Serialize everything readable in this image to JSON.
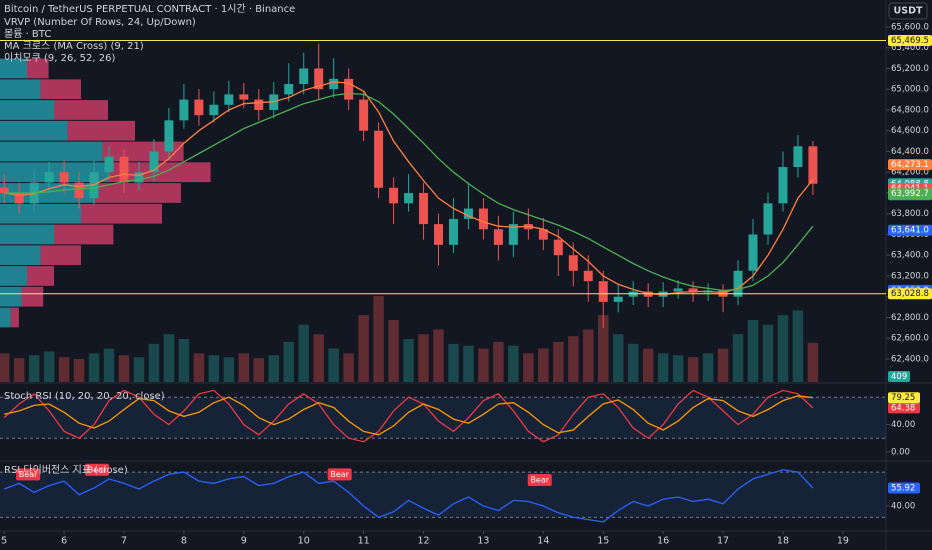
{
  "header": {
    "title": "Bitcoin / TetherUS PERPETUAL CONTRACT · 1시간 · Binance",
    "indicators": [
      "VRVP (Number Of Rows, 24, Up/Down)",
      "볼륨 · BTC",
      "MA 크로스 (MA Cross) (9, 21)",
      "이치모쿠 (9, 26, 52, 26)"
    ],
    "currency": "USDT"
  },
  "chart_data": [
    {
      "type": "candlestick",
      "x": [
        5,
        5.25,
        5.5,
        5.75,
        6,
        6.25,
        6.5,
        6.75,
        7,
        7.25,
        7.5,
        7.75,
        8,
        8.25,
        8.5,
        8.75,
        9,
        9.25,
        9.5,
        9.75,
        10,
        10.25,
        10.5,
        10.75,
        11,
        11.25,
        11.5,
        11.75,
        12,
        12.25,
        12.5,
        12.75,
        13,
        13.25,
        13.5,
        13.75,
        14,
        14.25,
        14.5,
        14.75,
        15,
        15.25,
        15.5,
        15.75,
        16,
        16.25,
        16.5,
        16.75,
        17,
        17.25,
        17.5,
        17.75,
        18,
        18.25,
        18.5
      ],
      "open": [
        64050,
        64000,
        63900,
        64100,
        64200,
        64100,
        63950,
        64200,
        64350,
        64100,
        64200,
        64400,
        64700,
        64900,
        64750,
        64850,
        64950,
        64900,
        64800,
        64950,
        65050,
        65200,
        65000,
        65100,
        64900,
        64600,
        64050,
        63900,
        64000,
        63700,
        63500,
        63750,
        63850,
        63650,
        63500,
        63700,
        63650,
        63550,
        63400,
        63250,
        63150,
        62950,
        63000,
        63050,
        63000,
        63050,
        63080,
        63040,
        63060,
        63000,
        63250,
        63600,
        63900,
        64250,
        64450
      ],
      "high": [
        64180,
        64100,
        64220,
        64300,
        64320,
        64200,
        64310,
        64450,
        64420,
        64300,
        64520,
        64820,
        65050,
        65000,
        64980,
        65080,
        65060,
        65000,
        65070,
        65250,
        65350,
        65440,
        65300,
        65200,
        64980,
        64680,
        64150,
        64180,
        64100,
        63800,
        63950,
        64100,
        63950,
        63780,
        63820,
        63850,
        63760,
        63650,
        63520,
        63400,
        63250,
        63120,
        63150,
        63130,
        63140,
        63160,
        63150,
        63130,
        63120,
        63350,
        63750,
        64000,
        64400,
        64560,
        64500
      ],
      "low": [
        63900,
        63800,
        63820,
        64020,
        64000,
        63850,
        63880,
        64120,
        64000,
        64020,
        64120,
        64320,
        64620,
        64650,
        64680,
        64780,
        64820,
        64700,
        64720,
        64880,
        64950,
        64900,
        64920,
        64800,
        64500,
        63950,
        63700,
        63820,
        63550,
        63300,
        63420,
        63650,
        63550,
        63350,
        63380,
        63550,
        63450,
        63200,
        63100,
        62950,
        62700,
        62850,
        62920,
        62900,
        62900,
        62980,
        62950,
        62960,
        62850,
        62920,
        63150,
        63500,
        63820,
        64150,
        63980
      ],
      "close": [
        64000,
        63900,
        64100,
        64200,
        64100,
        63950,
        64200,
        64350,
        64100,
        64200,
        64400,
        64700,
        64900,
        64750,
        64850,
        64950,
        64900,
        64800,
        64950,
        65050,
        65200,
        65000,
        65100,
        64900,
        64600,
        64050,
        63900,
        64000,
        63700,
        63500,
        63750,
        63850,
        63650,
        63500,
        63700,
        63650,
        63550,
        63400,
        63250,
        63150,
        62950,
        63000,
        63050,
        63000,
        63050,
        63080,
        63040,
        63060,
        63000,
        63250,
        63600,
        63900,
        64250,
        64450,
        64088.8
      ],
      "up_color": "#26a69a",
      "down_color": "#ef5350",
      "series": [
        {
          "name": "MA 9",
          "color": "#ff7f3f",
          "values": [
            64000,
            63980,
            63990,
            64040,
            64080,
            64060,
            64080,
            64150,
            64180,
            64170,
            64220,
            64330,
            64480,
            64600,
            64700,
            64800,
            64860,
            64870,
            64880,
            64920,
            64990,
            65030,
            65070,
            65060,
            64980,
            64780,
            64500,
            64300,
            64120,
            63950,
            63850,
            63780,
            63720,
            63680,
            63670,
            63680,
            63650,
            63580,
            63460,
            63340,
            63200,
            63120,
            63070,
            63030,
            63020,
            63040,
            63050,
            63050,
            63040,
            63080,
            63200,
            63400,
            63650,
            63950,
            64130
          ]
        },
        {
          "name": "MA 21",
          "color": "#4caf50",
          "values": [
            64000,
            64000,
            64000,
            64010,
            64030,
            64040,
            64050,
            64080,
            64110,
            64130,
            64160,
            64220,
            64300,
            64380,
            64460,
            64540,
            64620,
            64680,
            64740,
            64800,
            64860,
            64900,
            64940,
            64960,
            64950,
            64880,
            64760,
            64620,
            64480,
            64330,
            64200,
            64090,
            63990,
            63900,
            63840,
            63790,
            63740,
            63690,
            63630,
            63560,
            63480,
            63400,
            63320,
            63250,
            63190,
            63140,
            63100,
            63080,
            63060,
            63070,
            63110,
            63200,
            63330,
            63500,
            63680
          ]
        },
        {
          "name": "Volume",
          "axis": "y2",
          "color": "#5d606b",
          "values": [
            300,
            250,
            280,
            320,
            260,
            240,
            300,
            350,
            280,
            260,
            400,
            500,
            450,
            300,
            280,
            260,
            300,
            250,
            280,
            420,
            600,
            500,
            350,
            300,
            700,
            900,
            650,
            450,
            500,
            550,
            400,
            380,
            350,
            420,
            380,
            300,
            350,
            420,
            480,
            550,
            700,
            500,
            400,
            350,
            300,
            280,
            260,
            300,
            350,
            500,
            650,
            600,
            700,
            750,
            409
          ]
        }
      ],
      "profile": {
        "prices": [
          62800,
          63000,
          63200,
          63400,
          63600,
          63800,
          64000,
          64200,
          64400,
          64600,
          64800,
          65000,
          65200
        ],
        "up": [
          40,
          80,
          100,
          150,
          200,
          300,
          350,
          400,
          380,
          250,
          200,
          150,
          100
        ],
        "down": [
          30,
          80,
          100,
          150,
          220,
          300,
          320,
          380,
          300,
          250,
          200,
          150,
          80
        ],
        "xlim": [
          0,
          1000
        ],
        "up_color": "#26a6b5",
        "down_color": "#e0406f"
      },
      "price_labels": [
        {
          "value": 65469.5,
          "label": "65,469.5",
          "color": "#ffeb3b",
          "line": true
        },
        {
          "value": 64273.1,
          "label": "64,273.1",
          "color": "#ff7f3f"
        },
        {
          "value": 64088.8,
          "label": "64,088.8",
          "color": "#26a69a"
        },
        {
          "value": 64041.1,
          "label": "64,041.1",
          "color": "#ef5350"
        },
        {
          "value": 63992.7,
          "label": "63,992.7",
          "color": "#4caf50"
        },
        {
          "value": 63641.0,
          "label": "63,641.0",
          "color": "#2962ff"
        },
        {
          "value": 63060.9,
          "label": "63,060.9",
          "color": "#2962ff"
        },
        {
          "value": 63028.8,
          "label": "63,028.8",
          "color": "#ffeb3b",
          "line": true
        }
      ],
      "countdown": "52:34",
      "xlim": [
        4.93,
        19.72
      ],
      "xticks": [
        5,
        6,
        7,
        8,
        9,
        10,
        11,
        12,
        13,
        14,
        15,
        16,
        17,
        18,
        19
      ],
      "ylim": [
        62178,
        65860
      ],
      "yticks": [
        {
          "value": 62400,
          "label": "62,400.0"
        },
        {
          "value": 62600,
          "label": "62,600.0"
        },
        {
          "value": 62800,
          "label": "62,800.0"
        },
        {
          "value": 63000,
          "label": "63,000.0"
        },
        {
          "value": 63200,
          "label": "63,200.0"
        },
        {
          "value": 63400,
          "label": "63,400.0"
        },
        {
          "value": 63600,
          "label": "63,600.0"
        },
        {
          "value": 63800,
          "label": "63,800.0"
        },
        {
          "value": 64000,
          "label": "64,000.0"
        },
        {
          "value": 64200,
          "label": "64,200.0"
        },
        {
          "value": 64400,
          "label": "64,400.0"
        },
        {
          "value": 64600,
          "label": "64,600.0"
        },
        {
          "value": 64800,
          "label": "64,800.0"
        },
        {
          "value": 65000,
          "label": "65,000.0"
        },
        {
          "value": 65200,
          "label": "65,200.0"
        },
        {
          "value": 65400,
          "label": "65,400.0"
        },
        {
          "value": 65600,
          "label": "65,600.0"
        }
      ],
      "y2lim": [
        0,
        4000
      ]
    },
    {
      "type": "oscillator",
      "title": "Stoch RSI (10, 20, 20, 20, close)",
      "x": [
        5,
        5.25,
        5.5,
        5.75,
        6,
        6.25,
        6.5,
        6.75,
        7,
        7.25,
        7.5,
        7.75,
        8,
        8.25,
        8.5,
        8.75,
        9,
        9.25,
        9.5,
        9.75,
        10,
        10.25,
        10.5,
        10.75,
        11,
        11.25,
        11.5,
        11.75,
        12,
        12.25,
        12.5,
        12.75,
        13,
        13.25,
        13.5,
        13.75,
        14,
        14.25,
        14.5,
        14.75,
        15,
        15.25,
        15.5,
        15.75,
        16,
        16.25,
        16.5,
        16.75,
        17,
        17.25,
        17.5,
        17.75,
        18,
        18.25,
        18.5
      ],
      "series": [
        {
          "name": "K",
          "color": "#f23645",
          "values": [
            50,
            70,
            85,
            60,
            30,
            20,
            40,
            75,
            90,
            80,
            55,
            40,
            60,
            85,
            90,
            70,
            40,
            25,
            45,
            70,
            85,
            70,
            40,
            20,
            15,
            30,
            60,
            80,
            70,
            45,
            30,
            50,
            75,
            85,
            60,
            30,
            15,
            25,
            55,
            80,
            85,
            65,
            35,
            20,
            40,
            70,
            90,
            80,
            60,
            40,
            55,
            80,
            90,
            85,
            64.38
          ]
        },
        {
          "name": "D",
          "color": "#ff9800",
          "values": [
            55,
            60,
            68,
            70,
            58,
            42,
            35,
            45,
            62,
            78,
            75,
            60,
            52,
            58,
            72,
            80,
            68,
            50,
            40,
            48,
            62,
            72,
            65,
            45,
            30,
            25,
            38,
            58,
            70,
            62,
            48,
            42,
            55,
            70,
            72,
            58,
            40,
            28,
            32,
            52,
            70,
            76,
            62,
            42,
            32,
            45,
            65,
            78,
            75,
            60,
            52,
            62,
            75,
            82,
            79.25
          ]
        }
      ],
      "bands": [
        20,
        80
      ],
      "xlim": [
        4.93,
        19.72
      ],
      "ylim": [
        -11.8,
        99.3
      ],
      "yticks": [
        {
          "value": 0,
          "label": "0.00"
        },
        {
          "value": 40,
          "label": "40.00"
        }
      ]
    },
    {
      "type": "oscillator",
      "title": "RSI 다이버전스 지표 (close)",
      "x": [
        5,
        5.25,
        5.5,
        5.75,
        6,
        6.25,
        6.5,
        6.75,
        7,
        7.25,
        7.5,
        7.75,
        8,
        8.25,
        8.5,
        8.75,
        9,
        9.25,
        9.5,
        9.75,
        10,
        10.25,
        10.5,
        10.75,
        11,
        11.25,
        11.5,
        11.75,
        12,
        12.25,
        12.5,
        12.75,
        13,
        13.25,
        13.5,
        13.75,
        14,
        14.25,
        14.5,
        14.75,
        15,
        15.25,
        15.5,
        15.75,
        16,
        16.25,
        16.5,
        16.75,
        17,
        17.25,
        17.5,
        17.75,
        18,
        18.25,
        18.5
      ],
      "series": [
        {
          "name": "RSI",
          "color": "#2962ff",
          "values": [
            55,
            60,
            52,
            58,
            62,
            50,
            56,
            64,
            60,
            55,
            62,
            68,
            70,
            62,
            60,
            64,
            66,
            58,
            60,
            66,
            70,
            60,
            62,
            52,
            40,
            30,
            35,
            45,
            38,
            32,
            42,
            48,
            40,
            36,
            45,
            44,
            40,
            34,
            30,
            28,
            26,
            36,
            44,
            40,
            46,
            48,
            44,
            46,
            42,
            55,
            64,
            68,
            72,
            70,
            55.92
          ]
        }
      ],
      "bands": [
        30,
        70
      ],
      "annotations": [
        {
          "x": 5.4,
          "y": 68,
          "text": "Bear"
        },
        {
          "x": 6.55,
          "y": 72,
          "text": "Bear"
        },
        {
          "x": 10.6,
          "y": 68,
          "text": "Bear"
        },
        {
          "x": 13.94,
          "y": 63,
          "text": "Bear"
        }
      ],
      "xlim": [
        4.93,
        19.72
      ],
      "ylim": [
        18.8,
        78.9
      ],
      "yticks": [
        {
          "value": 40,
          "label": "40.00"
        }
      ]
    }
  ]
}
